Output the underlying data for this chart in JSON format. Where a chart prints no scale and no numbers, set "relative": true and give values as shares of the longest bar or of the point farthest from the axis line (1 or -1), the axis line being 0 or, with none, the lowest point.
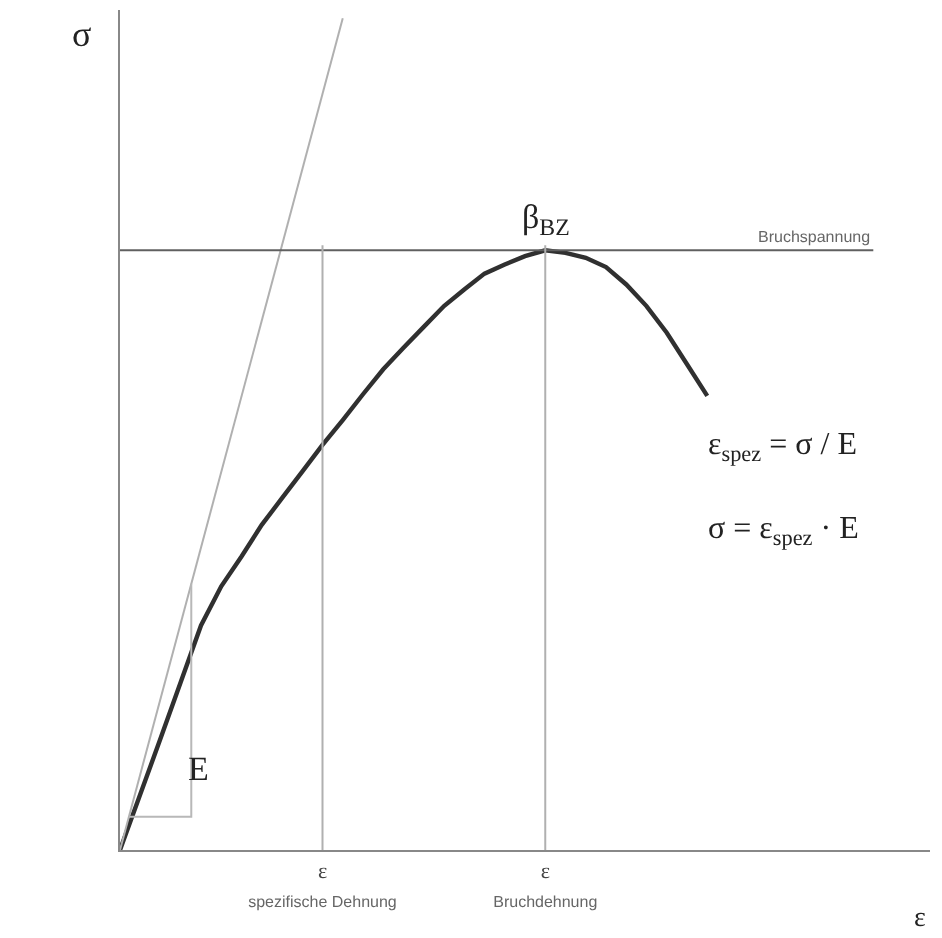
{
  "chart_data": {
    "type": "line",
    "relative": true,
    "xlabel": "ε",
    "ylabel": "σ",
    "categories": [
      null,
      null,
      null,
      null,
      null,
      null,
      null,
      null,
      null,
      null,
      "ε\nspezifische Dehnung",
      null,
      null,
      null,
      null,
      null,
      null,
      null,
      null,
      null,
      null,
      "ε\nBruchdehnung",
      null,
      null,
      null,
      null,
      null,
      null,
      null,
      null,
      null,
      null,
      null,
      null,
      null,
      null,
      null,
      null,
      null,
      null,
      null
    ],
    "series": [
      {
        "color": "#303030",
        "values": [
          0,
          0.067,
          0.134,
          0.202,
          0.27,
          0.317,
          0.353,
          0.391,
          0.423,
          0.455,
          0.487,
          0.517,
          0.548,
          0.578,
          0.604,
          0.629,
          0.654,
          0.674,
          0.693,
          0.704,
          0.714,
          0.721,
          0.718,
          0.712,
          0.701,
          0.68,
          0.654,
          0.622,
          0.584,
          0.546,
          null,
          null,
          null,
          null,
          null,
          null,
          null,
          null,
          null,
          null,
          null
        ]
      },
      {
        "color": "#b0b0b0",
        "values": [
          0,
          null,
          null,
          null,
          null,
          null,
          null,
          null,
          null,
          null,
          null,
          1,
          null,
          null,
          null,
          null,
          null,
          null,
          null,
          null,
          null,
          null,
          null,
          null,
          null,
          null,
          null,
          null,
          null,
          null,
          null,
          null,
          null,
          null,
          null,
          null,
          null,
          null,
          null,
          null,
          null
        ]
      }
    ],
    "ref_lines": [
      {
        "axis": "y",
        "value": 0.721,
        "label": "Bruchspannung",
        "color": "#606060"
      },
      {
        "axis": "x",
        "value": "ε\nspezifische Dehnung",
        "color": "#b0b0b0"
      },
      {
        "axis": "x",
        "value": "ε\nBruchdehnung",
        "color": "#b0b0b0"
      }
    ],
    "annotations": [
      "β$_{BZ}$",
      "E",
      "ε$_{spez}$ = σ / E",
      "σ = ε$_{spez}$ · E"
    ],
    "marker": "none",
    "line_style": "solid"
  }
}
